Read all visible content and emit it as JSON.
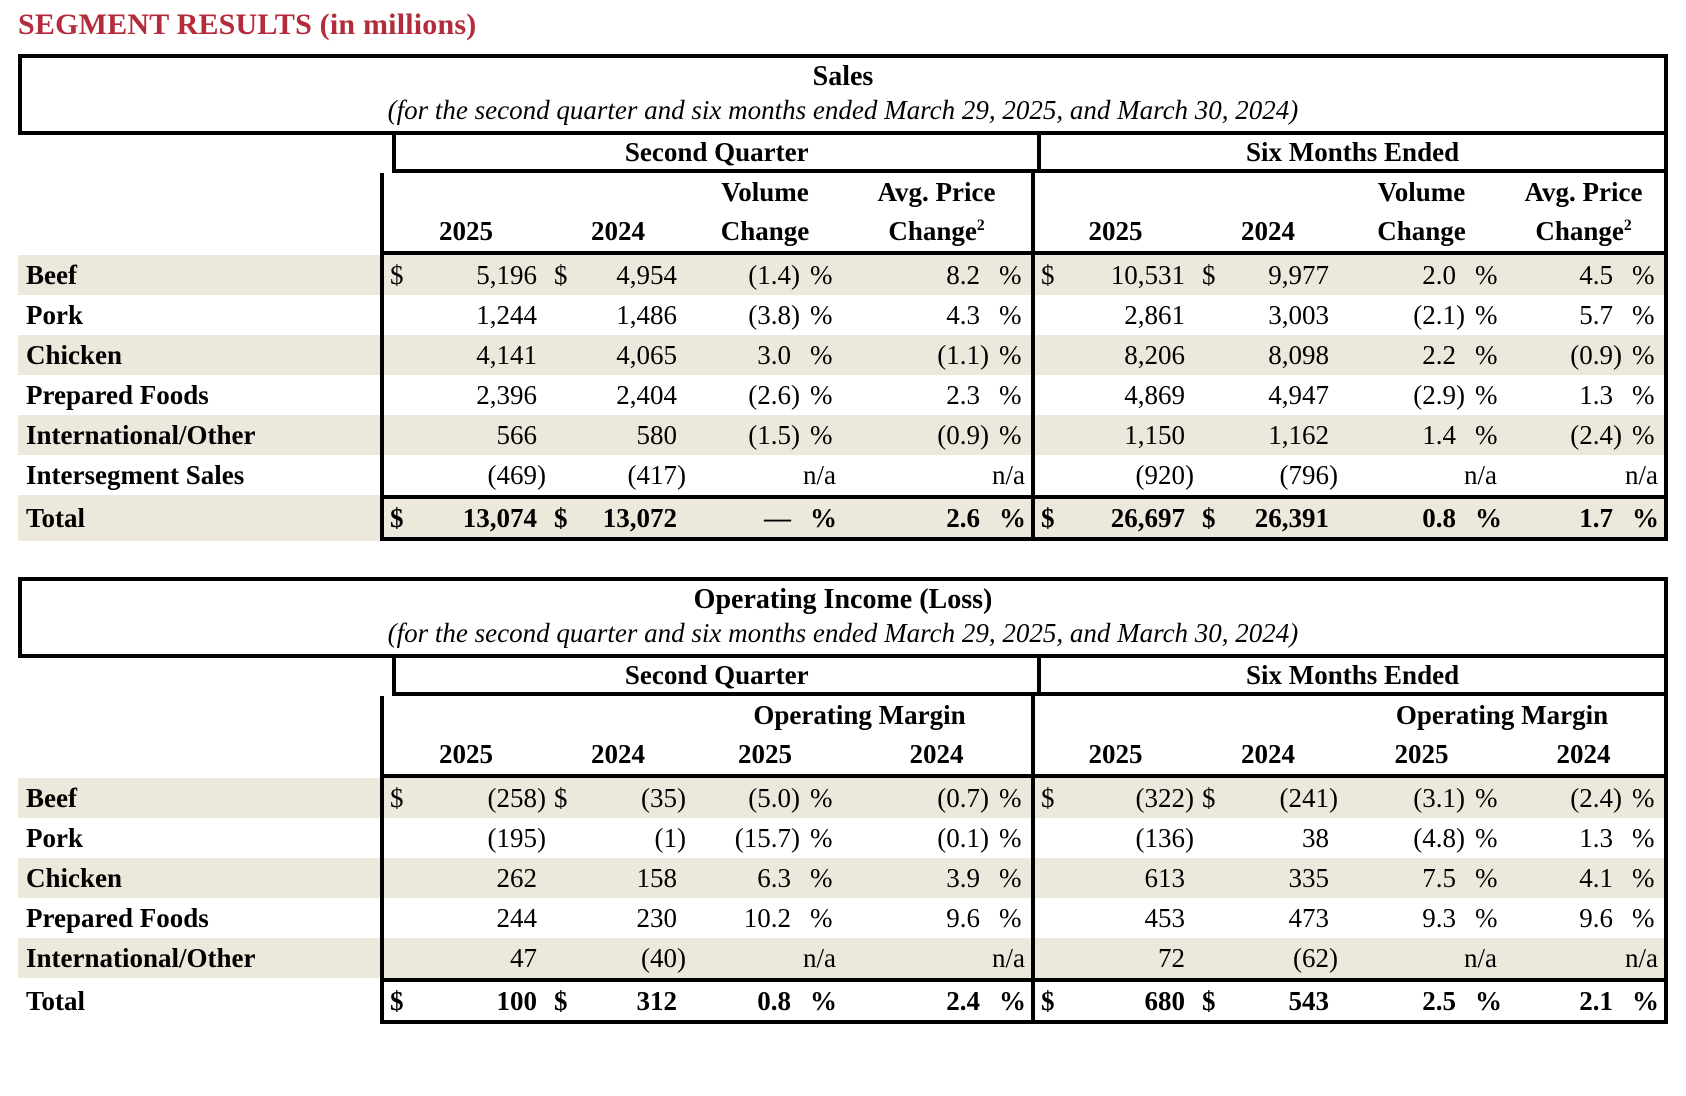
{
  "heading": "SEGMENT RESULTS (in millions)",
  "symbols": {
    "dollar_sign": "$",
    "percent_sign": "%",
    "na_label": "n/a"
  },
  "colors": {
    "heading_red": "#b42b3b",
    "stripe_beige": "#ece8db",
    "border_black": "#000000"
  },
  "tables": [
    {
      "id": "sales",
      "title": "Sales",
      "subtitle": "(for the second quarter and six months ended March 29, 2025, and March 30, 2024)",
      "section_headers": [
        "Second Quarter",
        "Six Months Ended"
      ],
      "subheader_type": "volume_price",
      "volume_label": "Volume",
      "price_label": "Avg. Price",
      "change_label": "Change",
      "change_sup": "2",
      "years": [
        "2025",
        "2024"
      ],
      "rows": [
        {
          "label": "Beef",
          "dollar": true,
          "shaded": true,
          "cells": [
            "5,196",
            "4,954",
            "(1.4)",
            "8.2",
            "10,531",
            "9,977",
            "2.0",
            "4.5"
          ]
        },
        {
          "label": "Pork",
          "dollar": false,
          "shaded": false,
          "cells": [
            "1,244",
            "1,486",
            "(3.8)",
            "4.3",
            "2,861",
            "3,003",
            "(2.1)",
            "5.7"
          ]
        },
        {
          "label": "Chicken",
          "dollar": false,
          "shaded": true,
          "cells": [
            "4,141",
            "4,065",
            "3.0",
            "(1.1)",
            "8,206",
            "8,098",
            "2.2",
            "(0.9)"
          ]
        },
        {
          "label": "Prepared Foods",
          "dollar": false,
          "shaded": false,
          "cells": [
            "2,396",
            "2,404",
            "(2.6)",
            "2.3",
            "4,869",
            "4,947",
            "(2.9)",
            "1.3"
          ]
        },
        {
          "label": "International/Other",
          "dollar": false,
          "shaded": true,
          "cells": [
            "566",
            "580",
            "(1.5)",
            "(0.9)",
            "1,150",
            "1,162",
            "1.4",
            "(2.4)"
          ]
        },
        {
          "label": "Intersegment Sales",
          "dollar": false,
          "shaded": false,
          "cells": [
            "(469)",
            "(417)",
            "n/a",
            "n/a",
            "(920)",
            "(796)",
            "n/a",
            "n/a"
          ]
        },
        {
          "label": "Total",
          "dollar": true,
          "shaded": true,
          "total": true,
          "cells": [
            "13,074",
            "13,072",
            "—",
            "2.6",
            "26,697",
            "26,391",
            "0.8",
            "1.7"
          ]
        }
      ]
    },
    {
      "id": "operating-income",
      "title": "Operating Income (Loss)",
      "subtitle": "(for the second quarter and six months ended March 29, 2025, and March 30, 2024)",
      "section_headers": [
        "Second Quarter",
        "Six Months Ended"
      ],
      "subheader_type": "margin",
      "margin_label": "Operating Margin",
      "years": [
        "2025",
        "2024",
        "2025",
        "2024"
      ],
      "rows": [
        {
          "label": "Beef",
          "dollar": true,
          "shaded": true,
          "cells": [
            "(258)",
            "(35)",
            "(5.0)",
            "(0.7)",
            "(322)",
            "(241)",
            "(3.1)",
            "(2.4)"
          ]
        },
        {
          "label": "Pork",
          "dollar": false,
          "shaded": false,
          "cells": [
            "(195)",
            "(1)",
            "(15.7)",
            "(0.1)",
            "(136)",
            "38",
            "(4.8)",
            "1.3"
          ]
        },
        {
          "label": "Chicken",
          "dollar": false,
          "shaded": true,
          "cells": [
            "262",
            "158",
            "6.3",
            "3.9",
            "613",
            "335",
            "7.5",
            "4.1"
          ]
        },
        {
          "label": "Prepared Foods",
          "dollar": false,
          "shaded": false,
          "cells": [
            "244",
            "230",
            "10.2",
            "9.6",
            "453",
            "473",
            "9.3",
            "9.6"
          ]
        },
        {
          "label": "International/Other",
          "dollar": false,
          "shaded": true,
          "cells": [
            "47",
            "(40)",
            "n/a",
            "n/a",
            "72",
            "(62)",
            "n/a",
            "n/a"
          ]
        },
        {
          "label": "Total",
          "dollar": true,
          "shaded": false,
          "total": true,
          "cells": [
            "100",
            "312",
            "0.8",
            "2.4",
            "680",
            "543",
            "2.5",
            "2.1"
          ]
        }
      ]
    }
  ]
}
